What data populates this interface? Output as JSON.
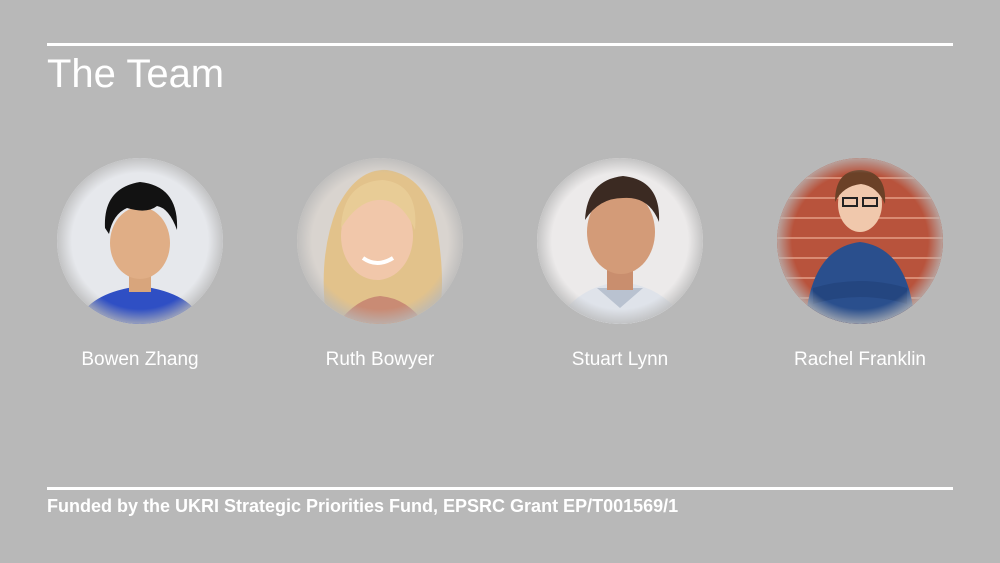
{
  "slide": {
    "title": "The Team",
    "footer": "Funded by the UKRI Strategic Priorities Fund, EPSRC Grant EP/T001569/1"
  },
  "team": [
    {
      "name": "Bowen Zhang"
    },
    {
      "name": "Ruth Bowyer"
    },
    {
      "name": "Stuart Lynn"
    },
    {
      "name": "Rachel Franklin"
    }
  ]
}
